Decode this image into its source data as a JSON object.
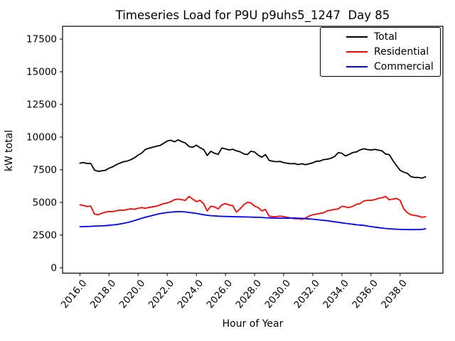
{
  "chart_data": {
    "type": "line",
    "title": "Timeseries Load for P9U p9uhs5_1247  Day 85",
    "xlabel": "Hour of Year",
    "ylabel": "kW total",
    "grid": false,
    "legend": {
      "position": "upper right"
    },
    "xlim": [
      2014.81,
      2040.94
    ],
    "ylim": [
      -410,
      18480
    ],
    "xticks": [
      2016,
      2018,
      2020,
      2022,
      2024,
      2026,
      2028,
      2030,
      2032,
      2034,
      2036,
      2038
    ],
    "xtick_labels": [
      "2016.0",
      "2018.0",
      "2020.0",
      "2022.0",
      "2024.0",
      "2026.0",
      "2028.0",
      "2030.0",
      "2032.0",
      "2034.0",
      "2036.0",
      "2038.0"
    ],
    "yticks": [
      0,
      2500,
      5000,
      7500,
      10000,
      12500,
      15000,
      17500
    ],
    "ytick_labels": [
      "0",
      "2500",
      "5000",
      "7500",
      "10000",
      "12500",
      "15000",
      "17500"
    ],
    "x": [
      2016.0,
      2016.25,
      2016.5,
      2016.75,
      2017.0,
      2017.25,
      2017.5,
      2017.75,
      2018.0,
      2018.25,
      2018.5,
      2018.75,
      2019.0,
      2019.25,
      2019.5,
      2019.75,
      2020.0,
      2020.25,
      2020.5,
      2020.75,
      2021.0,
      2021.25,
      2021.5,
      2021.75,
      2022.0,
      2022.25,
      2022.5,
      2022.75,
      2023.0,
      2023.25,
      2023.5,
      2023.75,
      2024.0,
      2024.25,
      2024.5,
      2024.75,
      2025.0,
      2025.25,
      2025.5,
      2025.75,
      2026.0,
      2026.25,
      2026.5,
      2026.75,
      2027.0,
      2027.25,
      2027.5,
      2027.75,
      2028.0,
      2028.25,
      2028.5,
      2028.75,
      2029.0,
      2029.25,
      2029.5,
      2029.75,
      2030.0,
      2030.25,
      2030.5,
      2030.75,
      2031.0,
      2031.25,
      2031.5,
      2031.75,
      2032.0,
      2032.25,
      2032.5,
      2032.75,
      2033.0,
      2033.25,
      2033.5,
      2033.75,
      2034.0,
      2034.25,
      2034.5,
      2034.75,
      2035.0,
      2035.25,
      2035.5,
      2035.75,
      2036.0,
      2036.25,
      2036.5,
      2036.75,
      2037.0,
      2037.25,
      2037.5,
      2037.75,
      2038.0,
      2038.25,
      2038.5,
      2038.75,
      2039.0,
      2039.25,
      2039.5,
      2039.75
    ],
    "series": [
      {
        "name": "Total",
        "color": "#000000",
        "values": [
          8000,
          8060,
          7980,
          7990,
          7480,
          7380,
          7420,
          7460,
          7620,
          7720,
          7890,
          8010,
          8120,
          8170,
          8270,
          8420,
          8620,
          8780,
          9060,
          9150,
          9230,
          9300,
          9360,
          9520,
          9700,
          9760,
          9640,
          9790,
          9650,
          9550,
          9280,
          9220,
          9380,
          9190,
          9050,
          8600,
          8920,
          8760,
          8680,
          9170,
          9100,
          9020,
          9070,
          8950,
          8880,
          8720,
          8660,
          8920,
          8860,
          8620,
          8460,
          8660,
          8220,
          8150,
          8120,
          8140,
          8050,
          8000,
          7960,
          7980,
          7900,
          7960,
          7890,
          7960,
          8040,
          8150,
          8170,
          8280,
          8310,
          8380,
          8520,
          8810,
          8760,
          8560,
          8680,
          8820,
          8870,
          9020,
          9110,
          9050,
          9010,
          9060,
          9000,
          8950,
          8710,
          8660,
          8210,
          7820,
          7460,
          7320,
          7230,
          6970,
          6910,
          6920,
          6860,
          6960
        ]
      },
      {
        "name": "Residential",
        "color": "#ff0000",
        "values": [
          4820,
          4760,
          4700,
          4720,
          4120,
          4060,
          4170,
          4260,
          4310,
          4300,
          4360,
          4410,
          4400,
          4460,
          4510,
          4480,
          4560,
          4610,
          4560,
          4620,
          4660,
          4710,
          4810,
          4910,
          4960,
          5060,
          5210,
          5260,
          5210,
          5160,
          5460,
          5260,
          5060,
          5160,
          4910,
          4360,
          4710,
          4660,
          4510,
          4810,
          4910,
          4810,
          4760,
          4260,
          4510,
          4810,
          5010,
          4960,
          4710,
          4610,
          4360,
          4460,
          3960,
          3910,
          3910,
          3960,
          3910,
          3860,
          3810,
          3760,
          3760,
          3710,
          3810,
          3960,
          4060,
          4110,
          4160,
          4210,
          4360,
          4410,
          4460,
          4510,
          4710,
          4660,
          4610,
          4710,
          4860,
          4910,
          5110,
          5160,
          5160,
          5210,
          5310,
          5360,
          5460,
          5210,
          5260,
          5310,
          5160,
          4510,
          4210,
          4060,
          4010,
          3960,
          3860,
          3910
        ]
      },
      {
        "name": "Commercial",
        "color": "#0000ff",
        "values": [
          3150,
          3150,
          3160,
          3170,
          3190,
          3200,
          3210,
          3220,
          3250,
          3280,
          3310,
          3350,
          3400,
          3460,
          3530,
          3610,
          3700,
          3790,
          3870,
          3940,
          4010,
          4080,
          4140,
          4190,
          4230,
          4260,
          4280,
          4300,
          4290,
          4270,
          4240,
          4200,
          4160,
          4110,
          4060,
          4020,
          3990,
          3970,
          3950,
          3940,
          3930,
          3920,
          3910,
          3900,
          3900,
          3890,
          3890,
          3880,
          3870,
          3860,
          3850,
          3830,
          3820,
          3810,
          3800,
          3800,
          3800,
          3790,
          3800,
          3810,
          3800,
          3780,
          3760,
          3740,
          3720,
          3690,
          3660,
          3630,
          3600,
          3560,
          3520,
          3480,
          3440,
          3400,
          3370,
          3330,
          3290,
          3270,
          3250,
          3200,
          3150,
          3110,
          3080,
          3040,
          3010,
          2990,
          2970,
          2950,
          2940,
          2930,
          2930,
          2920,
          2920,
          2930,
          2940,
          2990
        ]
      }
    ]
  }
}
